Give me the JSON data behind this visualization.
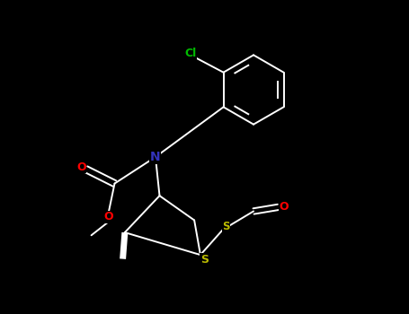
{
  "background_color": "#000000",
  "bond_color": "#ffffff",
  "atom_colors": {
    "Cl": "#00bb00",
    "O": "#ff0000",
    "N": "#3333bb",
    "S": "#bbbb00",
    "C": "#ffffff"
  },
  "figsize": [
    4.55,
    3.5
  ],
  "dpi": 100,
  "lw": 1.4
}
